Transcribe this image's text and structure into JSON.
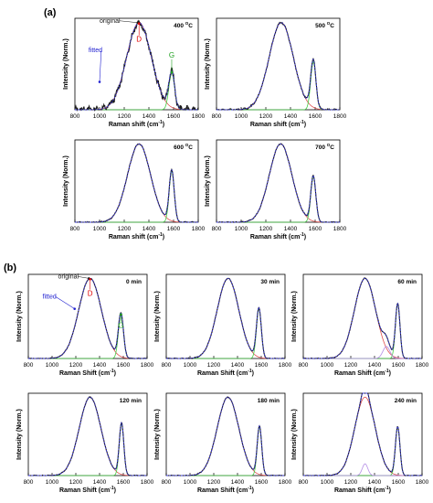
{
  "figure": {
    "part_labels": [
      "(a)",
      "(b)"
    ]
  },
  "colors": {
    "original": "#1a1a1a",
    "fitted": "#3b3bdc",
    "d_band": "#e05050",
    "g_band": "#44cc44",
    "extra_band": "#b48ce6",
    "annot_d": "#e00000",
    "annot_g": "#20a020",
    "annot_fitted": "#2020d0"
  },
  "chart_data": [
    {
      "type": "line",
      "group": "a",
      "label": "400 °C",
      "xlabel": "Raman shift (cm⁻¹)",
      "ylabel": "Intensity (Norm.)",
      "xlim": [
        800,
        1800
      ],
      "xticks": [
        800,
        1000,
        1200,
        1400,
        1600,
        1800
      ],
      "ylim": [
        0,
        1.05
      ],
      "bands": [
        {
          "name": "D",
          "center": 1320,
          "height": 1.0,
          "width": 235
        },
        {
          "name": "G",
          "center": 1585,
          "height": 0.42,
          "width": 55
        }
      ],
      "noise": 0.03,
      "annotations": [
        {
          "text": "original",
          "color_key": "original",
          "x": 1310,
          "y": 1.0,
          "label_x": 1000,
          "label_y": 1.0
        },
        {
          "text": "fitted",
          "color_key": "annot_fitted",
          "x": 1000,
          "y": 0.32,
          "label_x": 910,
          "label_y": 0.66
        },
        {
          "text": "D",
          "color_key": "annot_d",
          "x": 1320,
          "y": 0.99,
          "label_x": 1320,
          "label_y": 0.78
        },
        {
          "text": "G",
          "color_key": "annot_g",
          "x": 1585,
          "y": 0.43,
          "label_x": 1585,
          "label_y": 0.6
        }
      ]
    },
    {
      "type": "line",
      "group": "a",
      "label": "500 °C",
      "xlabel": "Raman shift (cm⁻¹)",
      "ylabel": "Intensity (Norm.)",
      "xlim": [
        800,
        1800
      ],
      "xticks": [
        800,
        1000,
        1200,
        1400,
        1600,
        1800
      ],
      "ylim": [
        0,
        1.05
      ],
      "bands": [
        {
          "name": "D",
          "center": 1325,
          "height": 1.0,
          "width": 230
        },
        {
          "name": "G",
          "center": 1585,
          "height": 0.55,
          "width": 50
        }
      ],
      "noise": 0.008
    },
    {
      "type": "line",
      "group": "a",
      "label": "600 °C",
      "xlabel": "Raman shift (cm⁻¹)",
      "ylabel": "Intensity (Norm.)",
      "xlim": [
        800,
        1800
      ],
      "xticks": [
        800,
        1000,
        1200,
        1400,
        1600,
        1800
      ],
      "ylim": [
        0,
        1.05
      ],
      "bands": [
        {
          "name": "D",
          "center": 1320,
          "height": 1.0,
          "width": 220
        },
        {
          "name": "G",
          "center": 1585,
          "height": 0.65,
          "width": 48
        }
      ],
      "noise": 0.005
    },
    {
      "type": "line",
      "group": "a",
      "label": "700 °C",
      "xlabel": "Raman shift (cm⁻¹)",
      "ylabel": "Intensity (Norm.)",
      "xlim": [
        800,
        1800
      ],
      "xticks": [
        800,
        1000,
        1200,
        1400,
        1600,
        1800
      ],
      "ylim": [
        0,
        1.05
      ],
      "bands": [
        {
          "name": "D",
          "center": 1320,
          "height": 1.0,
          "width": 215
        },
        {
          "name": "G",
          "center": 1585,
          "height": 0.58,
          "width": 48
        }
      ],
      "noise": 0.005
    },
    {
      "type": "line",
      "group": "b",
      "label": "0 min",
      "xlabel": "Raman Shift (cm⁻¹)",
      "ylabel": "Intensity (Norm.)",
      "xlim": [
        800,
        1800
      ],
      "xticks": [
        800,
        1000,
        1200,
        1400,
        1600,
        1800
      ],
      "ylim": [
        0,
        1.05
      ],
      "bands": [
        {
          "name": "D",
          "center": 1320,
          "height": 1.0,
          "width": 225
        },
        {
          "name": "G",
          "center": 1580,
          "height": 0.55,
          "width": 50
        }
      ],
      "noise": 0.004,
      "annotations": [
        {
          "text": "original",
          "color_key": "original",
          "x": 1310,
          "y": 1.0,
          "label_x": 1050,
          "label_y": 1.0
        },
        {
          "text": "fitted",
          "color_key": "annot_fitted",
          "x": 1190,
          "y": 0.62,
          "label_x": 920,
          "label_y": 0.75
        },
        {
          "text": "D",
          "color_key": "annot_d",
          "x": 1320,
          "y": 0.99,
          "label_x": 1320,
          "label_y": 0.78
        },
        {
          "text": "G",
          "color_key": "annot_g",
          "x": 1580,
          "y": 0.55,
          "label_x": 1580,
          "label_y": 0.38
        }
      ]
    },
    {
      "type": "line",
      "group": "b",
      "label": "30 min",
      "xlabel": "Raman Shift (cm⁻¹)",
      "ylabel": "Intensity (Norm.)",
      "xlim": [
        800,
        1800
      ],
      "xticks": [
        800,
        1000,
        1200,
        1400,
        1600,
        1800
      ],
      "ylim": [
        0,
        1.05
      ],
      "bands": [
        {
          "name": "D",
          "center": 1320,
          "height": 1.0,
          "width": 215
        },
        {
          "name": "G",
          "center": 1580,
          "height": 0.62,
          "width": 48
        }
      ],
      "noise": 0.004
    },
    {
      "type": "line",
      "group": "b",
      "label": "60 min",
      "xlabel": "Raman Shift (cm⁻¹)",
      "ylabel": "Intensity (Norm.)",
      "xlim": [
        800,
        1800
      ],
      "xticks": [
        800,
        1000,
        1200,
        1400,
        1600,
        1800
      ],
      "ylim": [
        0,
        1.05
      ],
      "bands": [
        {
          "name": "D",
          "center": 1320,
          "height": 1.0,
          "width": 210
        },
        {
          "name": "G",
          "center": 1595,
          "height": 0.68,
          "width": 45
        },
        {
          "name": "D3",
          "center": 1500,
          "height": 0.15,
          "width": 70
        }
      ],
      "noise": 0.004
    },
    {
      "type": "line",
      "group": "b",
      "label": "120 min",
      "xlabel": "Raman Shift (cm⁻¹)",
      "ylabel": "Intensity (Norm.)",
      "xlim": [
        800,
        1800
      ],
      "xticks": [
        800,
        1000,
        1200,
        1400,
        1600,
        1800
      ],
      "ylim": [
        0,
        1.05
      ],
      "bands": [
        {
          "name": "D",
          "center": 1320,
          "height": 1.0,
          "width": 215
        },
        {
          "name": "G",
          "center": 1585,
          "height": 0.66,
          "width": 45
        }
      ],
      "noise": 0.004
    },
    {
      "type": "line",
      "group": "b",
      "label": "180 min",
      "xlabel": "Raman Shift (cm⁻¹)",
      "ylabel": "Intensity (Norm.)",
      "xlim": [
        800,
        1800
      ],
      "xticks": [
        800,
        1000,
        1200,
        1400,
        1600,
        1800
      ],
      "ylim": [
        0,
        1.05
      ],
      "bands": [
        {
          "name": "D",
          "center": 1320,
          "height": 1.0,
          "width": 215
        },
        {
          "name": "G",
          "center": 1585,
          "height": 0.62,
          "width": 45
        }
      ],
      "noise": 0.004
    },
    {
      "type": "line",
      "group": "b",
      "label": "240 min",
      "xlabel": "Raman Shift (cm⁻¹)",
      "ylabel": "Intensity (Norm.)",
      "xlim": [
        800,
        1800
      ],
      "xticks": [
        800,
        1000,
        1200,
        1400,
        1600,
        1800
      ],
      "ylim": [
        0,
        1.05
      ],
      "bands": [
        {
          "name": "D",
          "center": 1320,
          "height": 1.0,
          "width": 205
        },
        {
          "name": "G",
          "center": 1595,
          "height": 0.62,
          "width": 45
        },
        {
          "name": "D3",
          "center": 1320,
          "height": 0.15,
          "width": 55
        }
      ],
      "noise": 0.004
    }
  ]
}
